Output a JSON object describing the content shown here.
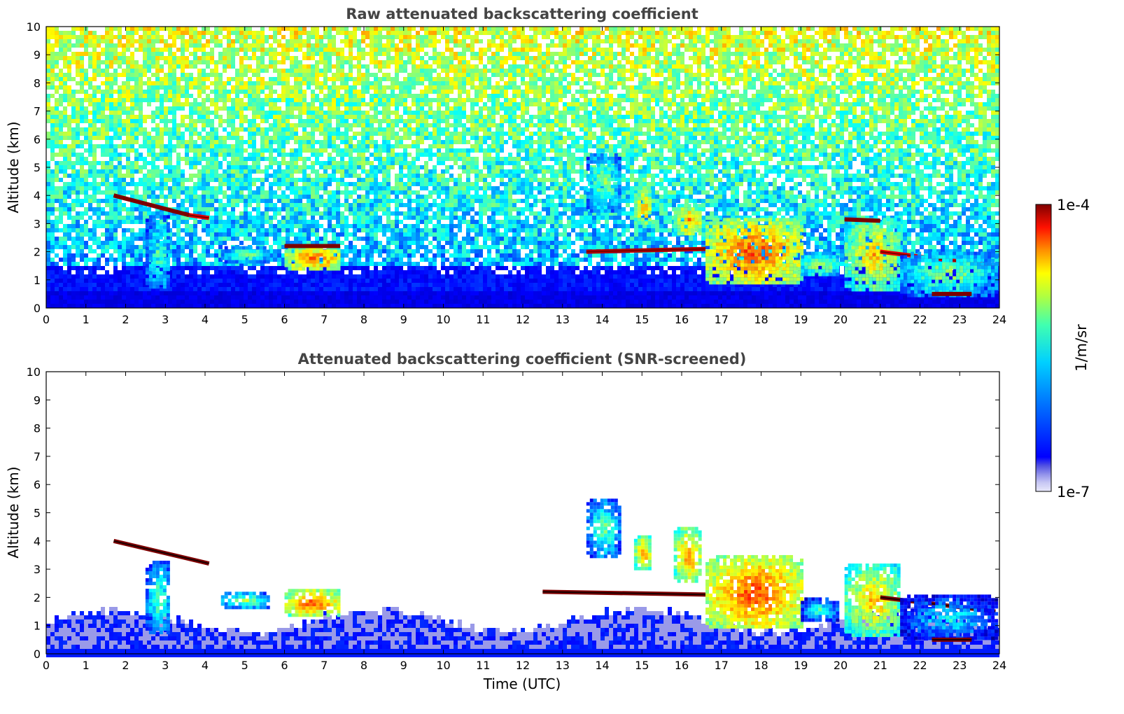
{
  "chart_data": [
    {
      "type": "heatmap",
      "title": "Raw attenuated backscattering coefficient",
      "xlabel": "",
      "ylabel": "Altitude (km)",
      "xlim": [
        0,
        24
      ],
      "ylim": [
        0,
        10
      ],
      "x_ticks": [
        "0",
        "1",
        "2",
        "3",
        "4",
        "5",
        "6",
        "7",
        "8",
        "9",
        "10",
        "11",
        "12",
        "13",
        "14",
        "15",
        "16",
        "17",
        "18",
        "19",
        "20",
        "21",
        "22",
        "23",
        "24"
      ],
      "y_ticks": [
        "0",
        "1",
        "2",
        "3",
        "4",
        "5",
        "6",
        "7",
        "8",
        "9",
        "10"
      ],
      "background_noise": true,
      "features": [
        {
          "x0": 1.7,
          "x1": 3.6,
          "y_start": 4.0,
          "y_end": 3.3,
          "level": 1.0,
          "kind": "line"
        },
        {
          "x0": 3.6,
          "x1": 4.1,
          "y_start": 3.3,
          "y_end": 3.2,
          "level": 0.9,
          "kind": "line"
        },
        {
          "x0": 2.5,
          "x1": 3.1,
          "y0": 0.7,
          "y1": 3.3,
          "level": 0.5,
          "kind": "blob"
        },
        {
          "x0": 4.4,
          "x1": 5.6,
          "y0": 1.7,
          "y1": 2.2,
          "level": 0.55,
          "kind": "blob"
        },
        {
          "x0": 6.0,
          "x1": 7.4,
          "y0": 1.4,
          "y1": 2.2,
          "level": 0.8,
          "kind": "blob"
        },
        {
          "x0": 6.0,
          "x1": 7.4,
          "y_start": 2.2,
          "y_end": 2.2,
          "level": 1.0,
          "kind": "line"
        },
        {
          "x0": 13.6,
          "x1": 14.4,
          "y0": 3.5,
          "y1": 5.5,
          "level": 0.55,
          "kind": "blob"
        },
        {
          "x0": 14.8,
          "x1": 15.2,
          "y0": 3.0,
          "y1": 4.2,
          "level": 0.75,
          "kind": "blob"
        },
        {
          "x0": 15.8,
          "x1": 16.5,
          "y0": 2.6,
          "y1": 3.7,
          "level": 0.75,
          "kind": "blob"
        },
        {
          "x0": 13.6,
          "x1": 16.6,
          "y_start": 2.0,
          "y_end": 2.1,
          "level": 0.95,
          "kind": "line"
        },
        {
          "x0": 16.6,
          "x1": 19.0,
          "y0": 0.9,
          "y1": 3.2,
          "level": 0.82,
          "kind": "blob"
        },
        {
          "x0": 19.0,
          "x1": 19.9,
          "y0": 1.2,
          "y1": 2.0,
          "level": 0.6,
          "kind": "blob"
        },
        {
          "x0": 20.1,
          "x1": 21.5,
          "y0": 0.7,
          "y1": 3.2,
          "level": 0.7,
          "kind": "blob"
        },
        {
          "x0": 20.1,
          "x1": 21.0,
          "y_start": 3.15,
          "y_end": 3.1,
          "level": 1.0,
          "kind": "line"
        },
        {
          "x0": 21.0,
          "x1": 23.9,
          "y_start": 2.0,
          "y_end": 1.5,
          "level": 0.9,
          "kind": "line"
        },
        {
          "x0": 21.5,
          "x1": 23.9,
          "y0": 0.5,
          "y1": 2.0,
          "level": 0.55,
          "kind": "blob"
        },
        {
          "x0": 22.3,
          "x1": 23.3,
          "y_start": 0.5,
          "y_end": 0.5,
          "level": 1.0,
          "kind": "line"
        }
      ]
    },
    {
      "type": "heatmap",
      "title": "Attenuated backscattering coefficient (SNR-screened)",
      "xlabel": "Time (UTC)",
      "ylabel": "Altitude (km)",
      "xlim": [
        0,
        24
      ],
      "ylim": [
        0,
        10
      ],
      "x_ticks": [
        "0",
        "1",
        "2",
        "3",
        "4",
        "5",
        "6",
        "7",
        "8",
        "9",
        "10",
        "11",
        "12",
        "13",
        "14",
        "15",
        "16",
        "17",
        "18",
        "19",
        "20",
        "21",
        "22",
        "23",
        "24"
      ],
      "y_ticks": [
        "0",
        "1",
        "2",
        "3",
        "4",
        "5",
        "6",
        "7",
        "8",
        "9",
        "10"
      ],
      "background_noise": false,
      "features": [
        {
          "x0": 1.7,
          "x1": 4.1,
          "y_start": 4.0,
          "y_end": 3.2,
          "level": 1.0,
          "kind": "line"
        },
        {
          "x0": 2.5,
          "x1": 3.1,
          "y0": 0.7,
          "y1": 3.3,
          "level": 0.5,
          "kind": "blob"
        },
        {
          "x0": 4.4,
          "x1": 5.6,
          "y0": 1.7,
          "y1": 2.2,
          "level": 0.55,
          "kind": "blob"
        },
        {
          "x0": 6.0,
          "x1": 7.4,
          "y0": 1.4,
          "y1": 2.3,
          "level": 0.8,
          "kind": "blob"
        },
        {
          "x0": 13.6,
          "x1": 14.4,
          "y0": 3.5,
          "y1": 5.5,
          "level": 0.5,
          "kind": "blob"
        },
        {
          "x0": 14.8,
          "x1": 15.2,
          "y0": 3.0,
          "y1": 4.2,
          "level": 0.75,
          "kind": "blob"
        },
        {
          "x0": 15.8,
          "x1": 16.5,
          "y0": 2.6,
          "y1": 4.5,
          "level": 0.75,
          "kind": "blob"
        },
        {
          "x0": 12.5,
          "x1": 16.6,
          "y_start": 2.2,
          "y_end": 2.1,
          "level": 1.0,
          "kind": "line"
        },
        {
          "x0": 16.6,
          "x1": 19.0,
          "y0": 0.9,
          "y1": 3.5,
          "level": 0.82,
          "kind": "blob"
        },
        {
          "x0": 19.0,
          "x1": 19.9,
          "y0": 1.2,
          "y1": 2.0,
          "level": 0.45,
          "kind": "blob"
        },
        {
          "x0": 20.1,
          "x1": 21.5,
          "y0": 0.7,
          "y1": 3.2,
          "level": 0.7,
          "kind": "blob"
        },
        {
          "x0": 21.0,
          "x1": 23.9,
          "y_start": 2.0,
          "y_end": 1.5,
          "level": 1.0,
          "kind": "line"
        },
        {
          "x0": 21.5,
          "x1": 23.9,
          "y0": 0.5,
          "y1": 2.1,
          "level": 0.4,
          "kind": "blob"
        },
        {
          "x0": 22.3,
          "x1": 23.3,
          "y_start": 0.5,
          "y_end": 0.5,
          "level": 1.0,
          "kind": "line"
        }
      ]
    }
  ],
  "colorbar": {
    "label": "1/m/sr",
    "max_label": "1e-4",
    "min_label": "1e-7",
    "scale": "log",
    "colormap": "jet",
    "low_colors": [
      "#e8e8fa",
      "#c8c8f4",
      "#a8a8ee",
      "#8080e8",
      "#6060e4",
      "#4040e0"
    ]
  }
}
